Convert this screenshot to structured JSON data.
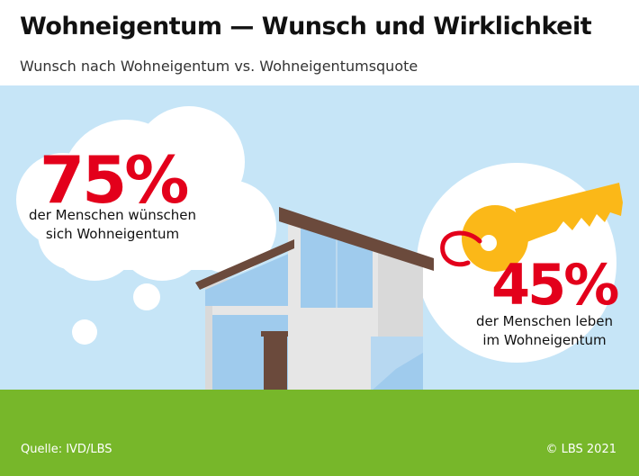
{
  "title": "Wohneigentum — Wunsch und Wirklichkeit",
  "subtitle": "Wunsch nach Wohneigentum vs. Wohneigentumsquote",
  "stat_wish": {
    "value": "75%",
    "line1": "der Menschen wünschen",
    "line2": "sich Wohneigentum"
  },
  "stat_reality": {
    "value": "45%",
    "line1": "der Menschen leben",
    "line2": "im Wohneigentum"
  },
  "footer": {
    "source": "Quelle: IVD/LBS",
    "copyright": "© LBS 2021"
  },
  "colors": {
    "sky": "#c6e5f7",
    "grass": "#77b72a",
    "accent_red": "#e3001b",
    "key_yellow": "#fbb818",
    "roof": "#6b4a3c",
    "door": "#6b4a3c",
    "house_wall": "#e6e6e6",
    "window": "#9fcbed"
  }
}
